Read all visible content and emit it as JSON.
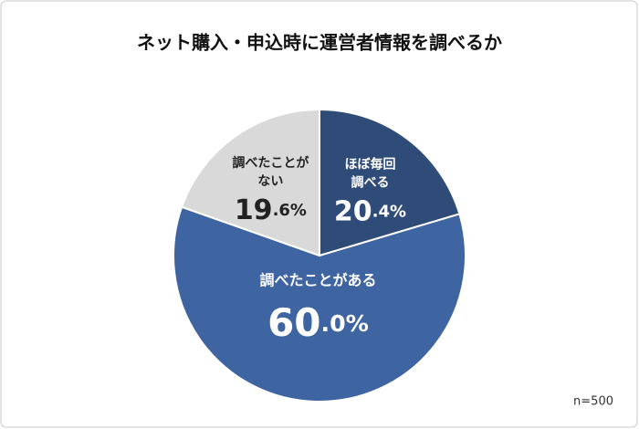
{
  "chart_data": {
    "type": "pie",
    "title": "ネット購入・申込時に運営者情報を調べるか",
    "categories": [
      [
        "ほぼ毎回",
        "調べる"
      ],
      [
        "調べたことがある"
      ],
      [
        "調べたことが",
        "ない"
      ]
    ],
    "values": [
      20.4,
      60.0,
      19.6
    ],
    "value_labels": [
      "20.4%",
      "60.0%",
      "19.6%"
    ],
    "colors": [
      "#2f4b78",
      "#3e65a2",
      "#d9d9d9"
    ],
    "annotation": "n=500"
  }
}
